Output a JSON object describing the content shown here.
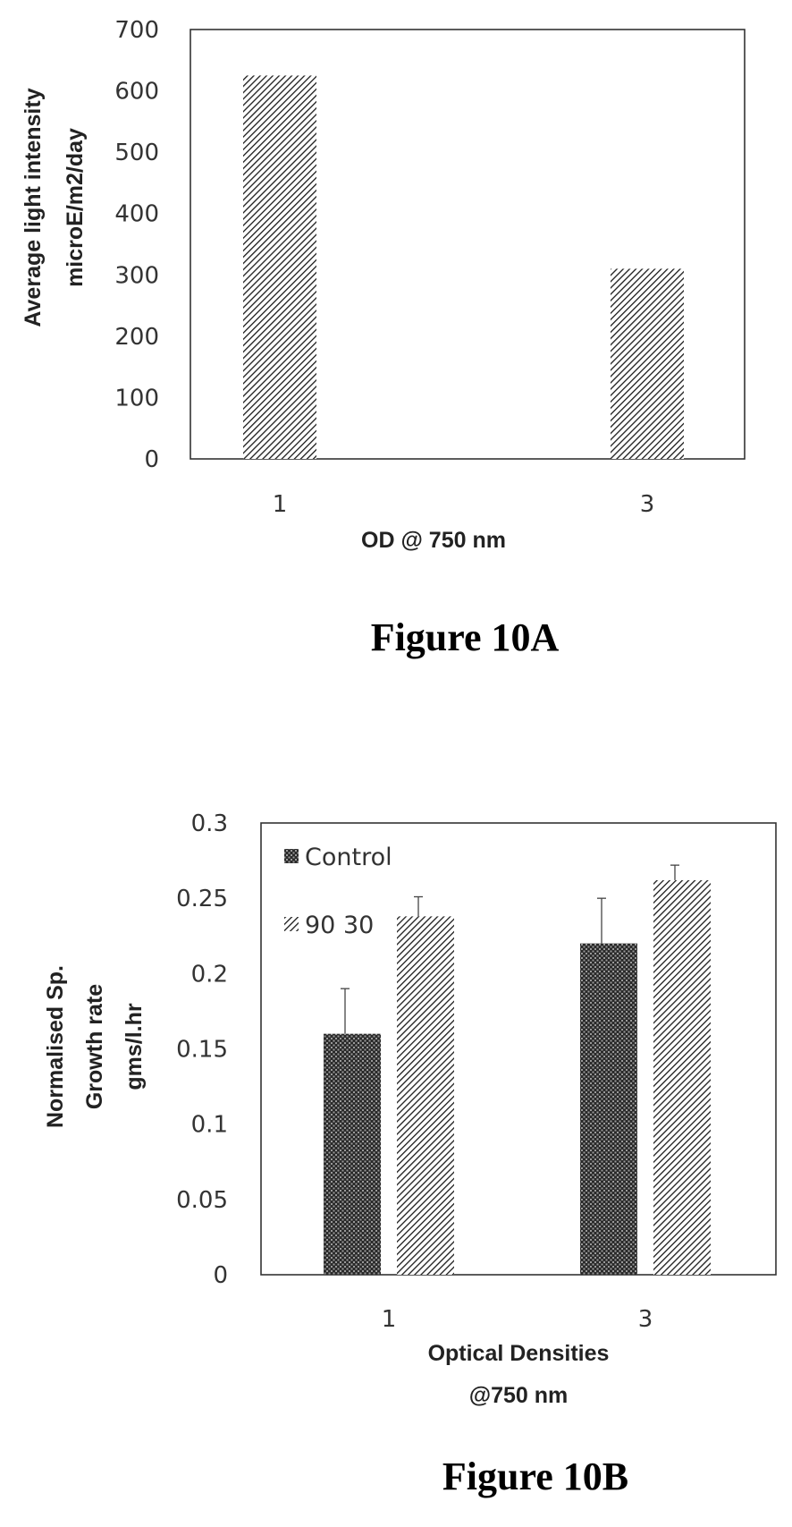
{
  "figures": {
    "a": {
      "caption": "Figure 10A"
    },
    "b": {
      "caption": "Figure 10B"
    }
  },
  "chart_data": [
    {
      "type": "bar",
      "categories": [
        "1",
        "3"
      ],
      "series": [
        {
          "values": [
            625,
            310
          ],
          "pattern": "hatch"
        }
      ],
      "title": "",
      "xlabel": "OD @ 750 nm",
      "ylabel": [
        "Average light intensity",
        "microE/m2/day"
      ],
      "ylim": [
        0,
        700
      ],
      "yticks": [
        "0",
        "100",
        "200",
        "300",
        "400",
        "500",
        "600",
        "700"
      ],
      "grid": false,
      "legend": "none"
    },
    {
      "type": "bar",
      "categories": [
        "1",
        "3"
      ],
      "series": [
        {
          "name": "Control",
          "values": [
            0.16,
            0.22
          ],
          "error": [
            0.03,
            0.03
          ],
          "pattern": "crosshatch"
        },
        {
          "name": "90 30",
          "values": [
            0.238,
            0.262
          ],
          "error": [
            0.013,
            0.01
          ],
          "pattern": "hatch"
        }
      ],
      "title": "",
      "xlabel": [
        "Optical Densities",
        "@750 nm"
      ],
      "ylabel": [
        "Normalised Sp.",
        "Growth rate",
        "gms/l.hr"
      ],
      "ylim": [
        0,
        0.3
      ],
      "yticks": [
        "0",
        "0.05",
        "0.1",
        "0.15",
        "0.2",
        "0.25",
        "0.3"
      ],
      "grid": false,
      "legend": "top-left"
    }
  ],
  "colors": {
    "ink": "#222222",
    "frame": "#333333",
    "background": "#ffffff"
  }
}
